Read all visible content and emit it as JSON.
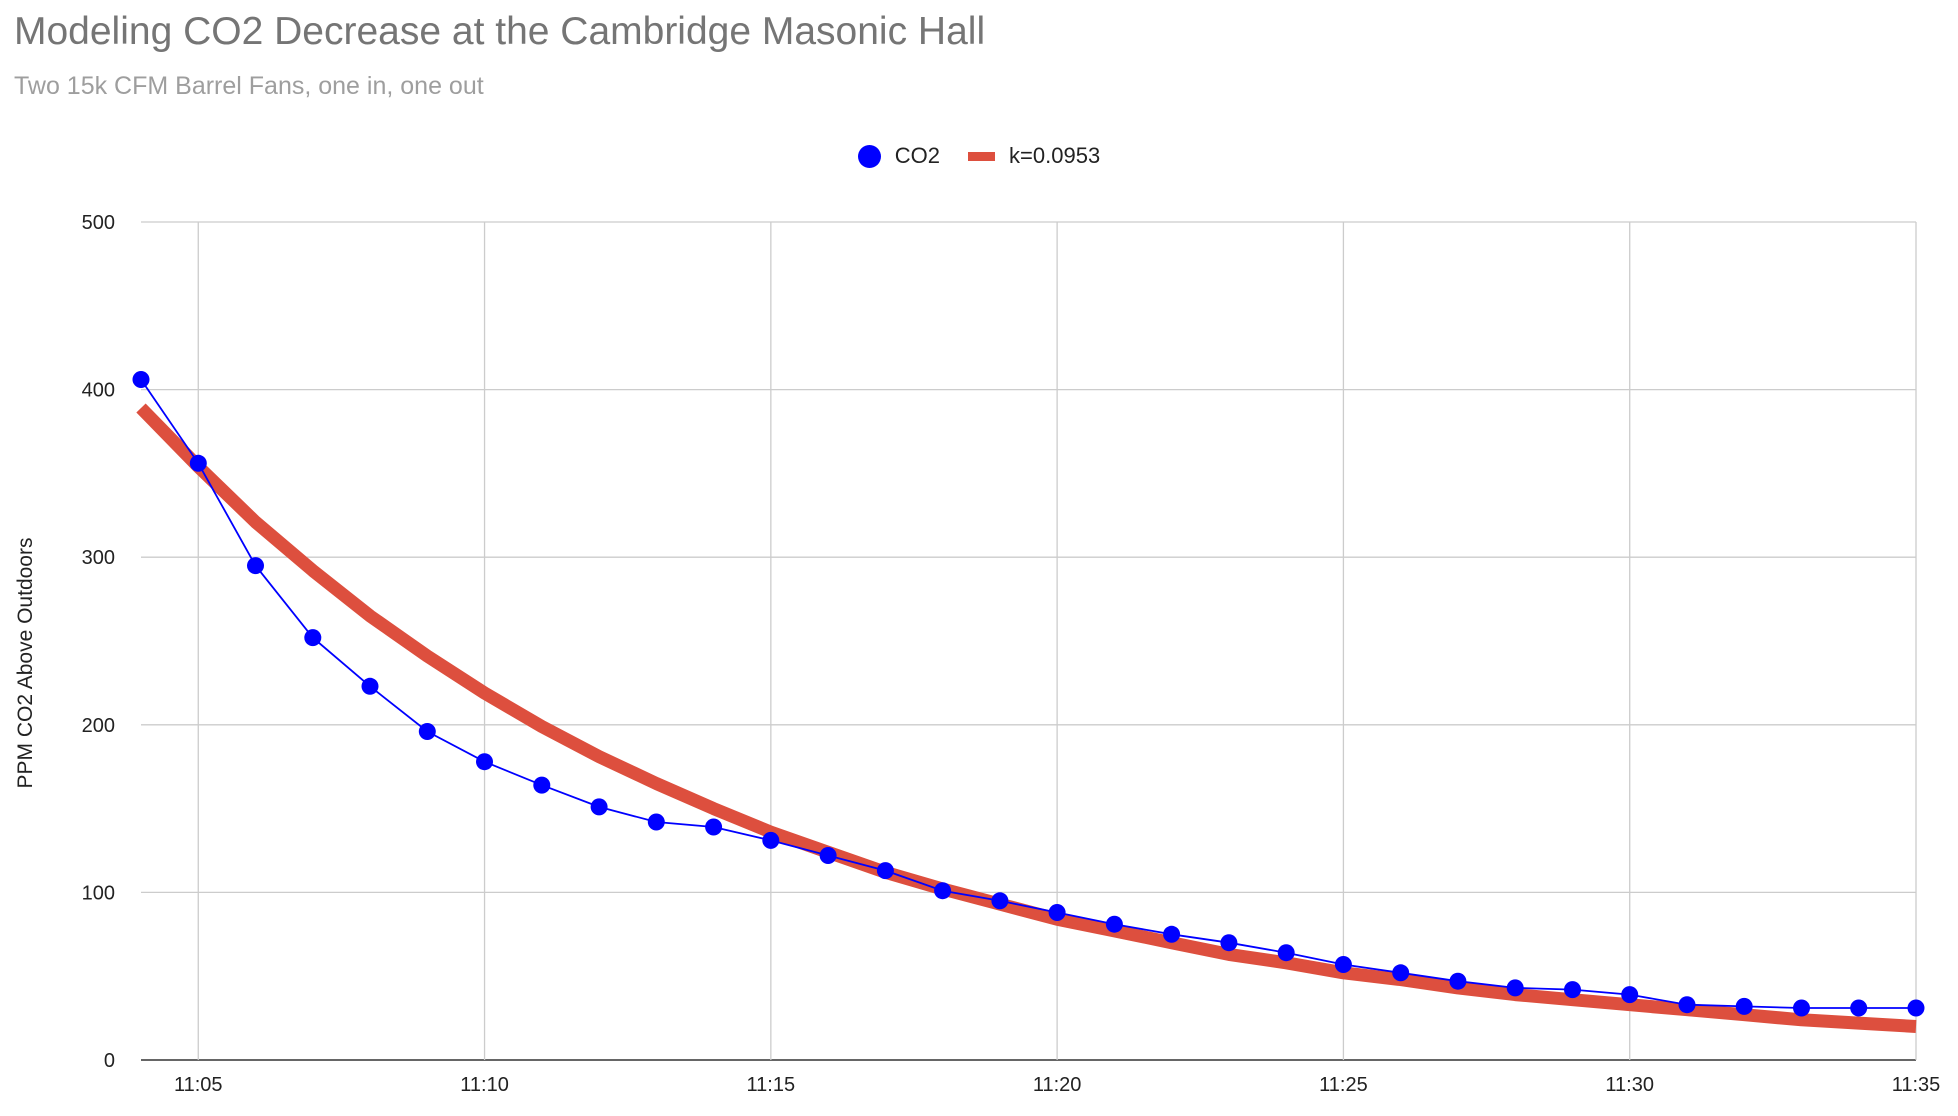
{
  "chart_data": {
    "type": "line",
    "title": "Modeling CO2 Decrease at the Cambridge Masonic Hall",
    "subtitle": "Two 15k CFM Barrel Fans, one in, one out",
    "xlabel": "",
    "ylabel": "PPM CO2 Above Outdoors",
    "ylim": [
      0,
      500
    ],
    "yticks": [
      "0",
      "100",
      "200",
      "300",
      "400",
      "500"
    ],
    "xticks": [
      "11:05",
      "11:10",
      "11:15",
      "11:20",
      "11:25",
      "11:30",
      "11:35"
    ],
    "xlim": [
      "11:04",
      "11:35"
    ],
    "grid": true,
    "legend_position": "top",
    "x": [
      "11:04",
      "11:05",
      "11:06",
      "11:07",
      "11:08",
      "11:09",
      "11:10",
      "11:11",
      "11:12",
      "11:13",
      "11:14",
      "11:15",
      "11:16",
      "11:17",
      "11:18",
      "11:19",
      "11:20",
      "11:21",
      "11:22",
      "11:23",
      "11:24",
      "11:25",
      "11:26",
      "11:27",
      "11:28",
      "11:29",
      "11:30",
      "11:31",
      "11:32",
      "11:33",
      "11:34",
      "11:35"
    ],
    "series": [
      {
        "name": "CO2",
        "color": "#0000ff",
        "style": "line-with-markers",
        "values": [
          406,
          356,
          295,
          252,
          223,
          196,
          178,
          164,
          151,
          142,
          139,
          131,
          122,
          113,
          101,
          95,
          88,
          81,
          75,
          70,
          64,
          57,
          52,
          47,
          43,
          42,
          39,
          33,
          32,
          31,
          31,
          31
        ]
      },
      {
        "name": "k=0.0953",
        "color": "#dd4f3e",
        "style": "thick-line",
        "values": [
          389,
          354,
          321,
          292,
          265,
          241,
          219,
          199,
          181,
          165,
          150,
          136,
          124,
          112,
          102,
          93,
          84,
          77,
          70,
          63,
          58,
          52,
          48,
          43,
          39,
          36,
          33,
          30,
          27,
          24,
          22,
          20
        ]
      }
    ]
  }
}
